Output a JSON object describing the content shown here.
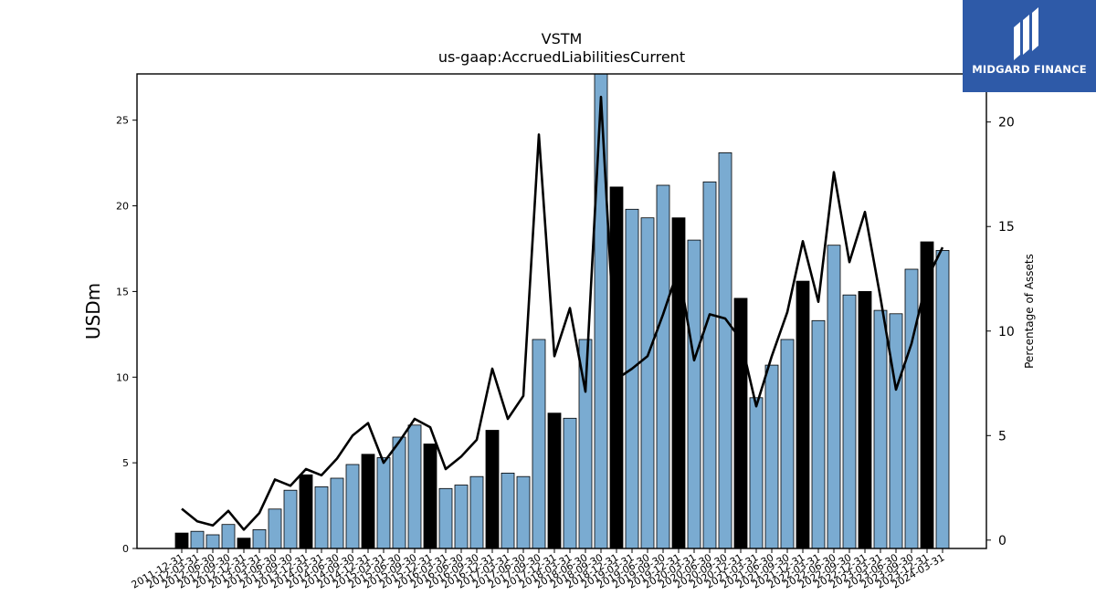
{
  "chart_data": {
    "type": "bar",
    "title": "VSTM",
    "subtitle": "us-gaap:AccruedLiabilitiesCurrent",
    "ylabel": "USDm",
    "y2label": "Percentage of Assets",
    "ylim": [
      0,
      27.7
    ],
    "y2lim": [
      -0.4,
      22.3
    ],
    "yticks": [
      0,
      5,
      10,
      15,
      20,
      25
    ],
    "y2ticks": [
      0,
      5,
      10,
      15,
      20
    ],
    "colors": {
      "bar_q": "#7aabd1",
      "bar_fy": "#000000",
      "line": "#000000"
    },
    "categories": [
      "2011-12-31",
      "2012-03-31",
      "2012-06-30",
      "2012-09-30",
      "2012-12-31",
      "2013-03-31",
      "2013-06-30",
      "2013-09-30",
      "2013-12-31",
      "2014-03-31",
      "2014-06-30",
      "2014-09-30",
      "2014-12-31",
      "2015-03-31",
      "2015-06-30",
      "2015-09-30",
      "2015-12-31",
      "2016-03-31",
      "2016-06-30",
      "2016-09-30",
      "2016-12-31",
      "2017-03-31",
      "2017-06-30",
      "2017-09-30",
      "2017-12-31",
      "2018-03-31",
      "2018-06-30",
      "2018-09-30",
      "2018-12-31",
      "2019-03-31",
      "2019-06-30",
      "2019-09-30",
      "2019-12-31",
      "2020-03-31",
      "2020-06-30",
      "2020-09-30",
      "2020-12-31",
      "2021-03-31",
      "2021-06-30",
      "2021-09-30",
      "2021-12-31",
      "2022-03-31",
      "2022-06-30",
      "2022-09-30",
      "2022-12-31",
      "2023-03-31",
      "2023-06-30",
      "2023-09-30",
      "2023-12-31",
      "2024-03-31"
    ],
    "series": [
      {
        "values": [
          0.9,
          1.0,
          0.8,
          1.4,
          0.6,
          1.1,
          2.3,
          3.4,
          4.3,
          3.6,
          4.1,
          4.9,
          5.5,
          5.3,
          6.5,
          7.2,
          6.1,
          3.5,
          3.7,
          4.2,
          6.9,
          4.4,
          4.2,
          12.2,
          7.9,
          7.6,
          12.2,
          27.8,
          21.1,
          19.8,
          19.3,
          21.2,
          19.3,
          18.0,
          21.4,
          23.1,
          14.6,
          8.8,
          10.7,
          12.2,
          15.6,
          13.3,
          17.7,
          14.8,
          15.0,
          13.9,
          13.7,
          16.3,
          17.9,
          17.4
        ],
        "fiscal_year_end": [
          true,
          false,
          false,
          false,
          true,
          false,
          false,
          false,
          true,
          false,
          false,
          false,
          true,
          false,
          false,
          false,
          true,
          false,
          false,
          false,
          true,
          false,
          false,
          false,
          true,
          false,
          false,
          false,
          true,
          false,
          false,
          false,
          true,
          false,
          false,
          false,
          true,
          false,
          false,
          false,
          true,
          false,
          false,
          false,
          true,
          false,
          false,
          false,
          true,
          false
        ]
      },
      {
        "name": "Percentage of Assets",
        "axis": "right",
        "values": [
          1.5,
          0.9,
          0.7,
          1.4,
          0.5,
          1.3,
          2.9,
          2.6,
          3.4,
          3.1,
          3.9,
          5.0,
          5.6,
          3.7,
          4.7,
          5.8,
          5.4,
          3.4,
          4.0,
          4.8,
          8.2,
          5.8,
          6.9,
          19.4,
          8.8,
          11.1,
          7.1,
          21.2,
          7.7,
          8.2,
          8.8,
          10.8,
          13.0,
          8.6,
          10.8,
          10.6,
          9.6,
          6.4,
          8.8,
          10.9,
          14.3,
          11.4,
          17.6,
          13.3,
          15.7,
          11.6,
          7.2,
          9.4,
          12.5,
          14.0
        ]
      }
    ],
    "grid": false
  },
  "logo": {
    "name": "MIDGARD FINANCE"
  }
}
